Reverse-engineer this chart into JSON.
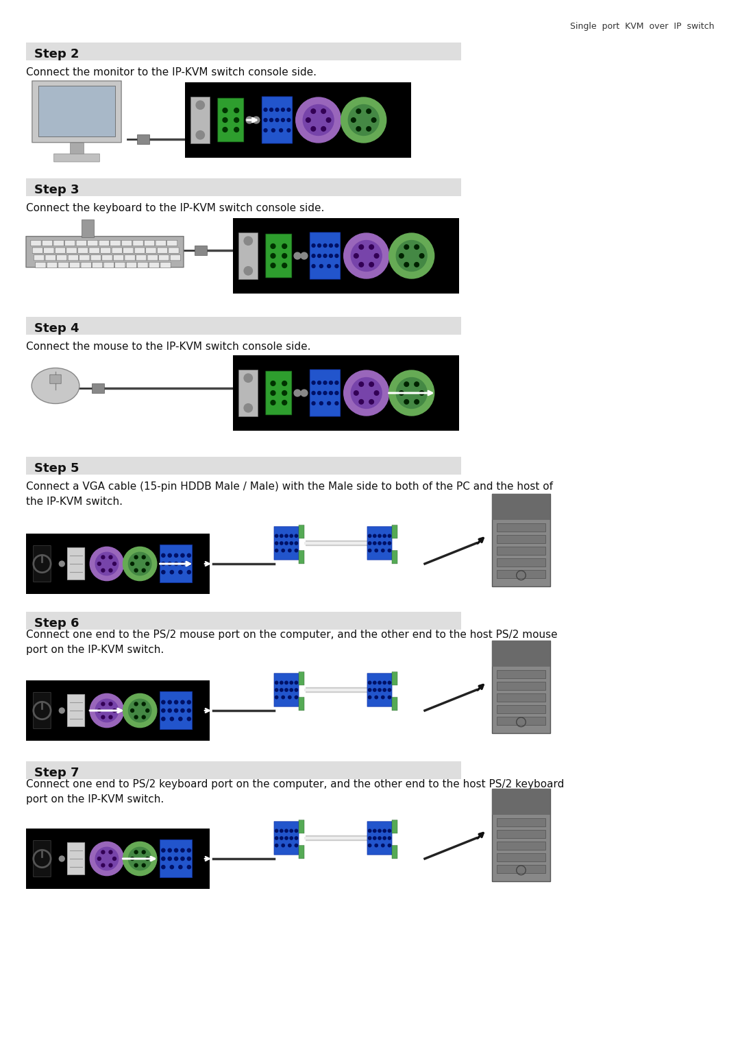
{
  "page_bg": "#ffffff",
  "header_text": "Single  port  KVM  over  IP  switch",
  "step_bg": "#dedede",
  "steps": [
    {
      "label": "Step 2",
      "desc": "Connect the monitor to the IP-KVM switch console side."
    },
    {
      "label": "Step 3",
      "desc": "Connect the keyboard to the IP-KVM switch console side."
    },
    {
      "label": "Step 4",
      "desc": "Connect the mouse to the IP-KVM switch console side."
    },
    {
      "label": "Step 5",
      "desc": "Connect a VGA cable (15-pin HDDB Male / Male) with the Male side to both of the PC and the host of\nthe IP-KVM switch."
    },
    {
      "label": "Step 6",
      "desc": "Connect one end to the PS/2 mouse port on the computer, and the other end to the host PS/2 mouse\nport on the IP-KVM switch."
    },
    {
      "label": "Step 7",
      "desc": "Connect one end to PS/2 keyboard port on the computer, and the other end to the host PS/2 keyboard\nport on the IP-KVM switch."
    }
  ]
}
